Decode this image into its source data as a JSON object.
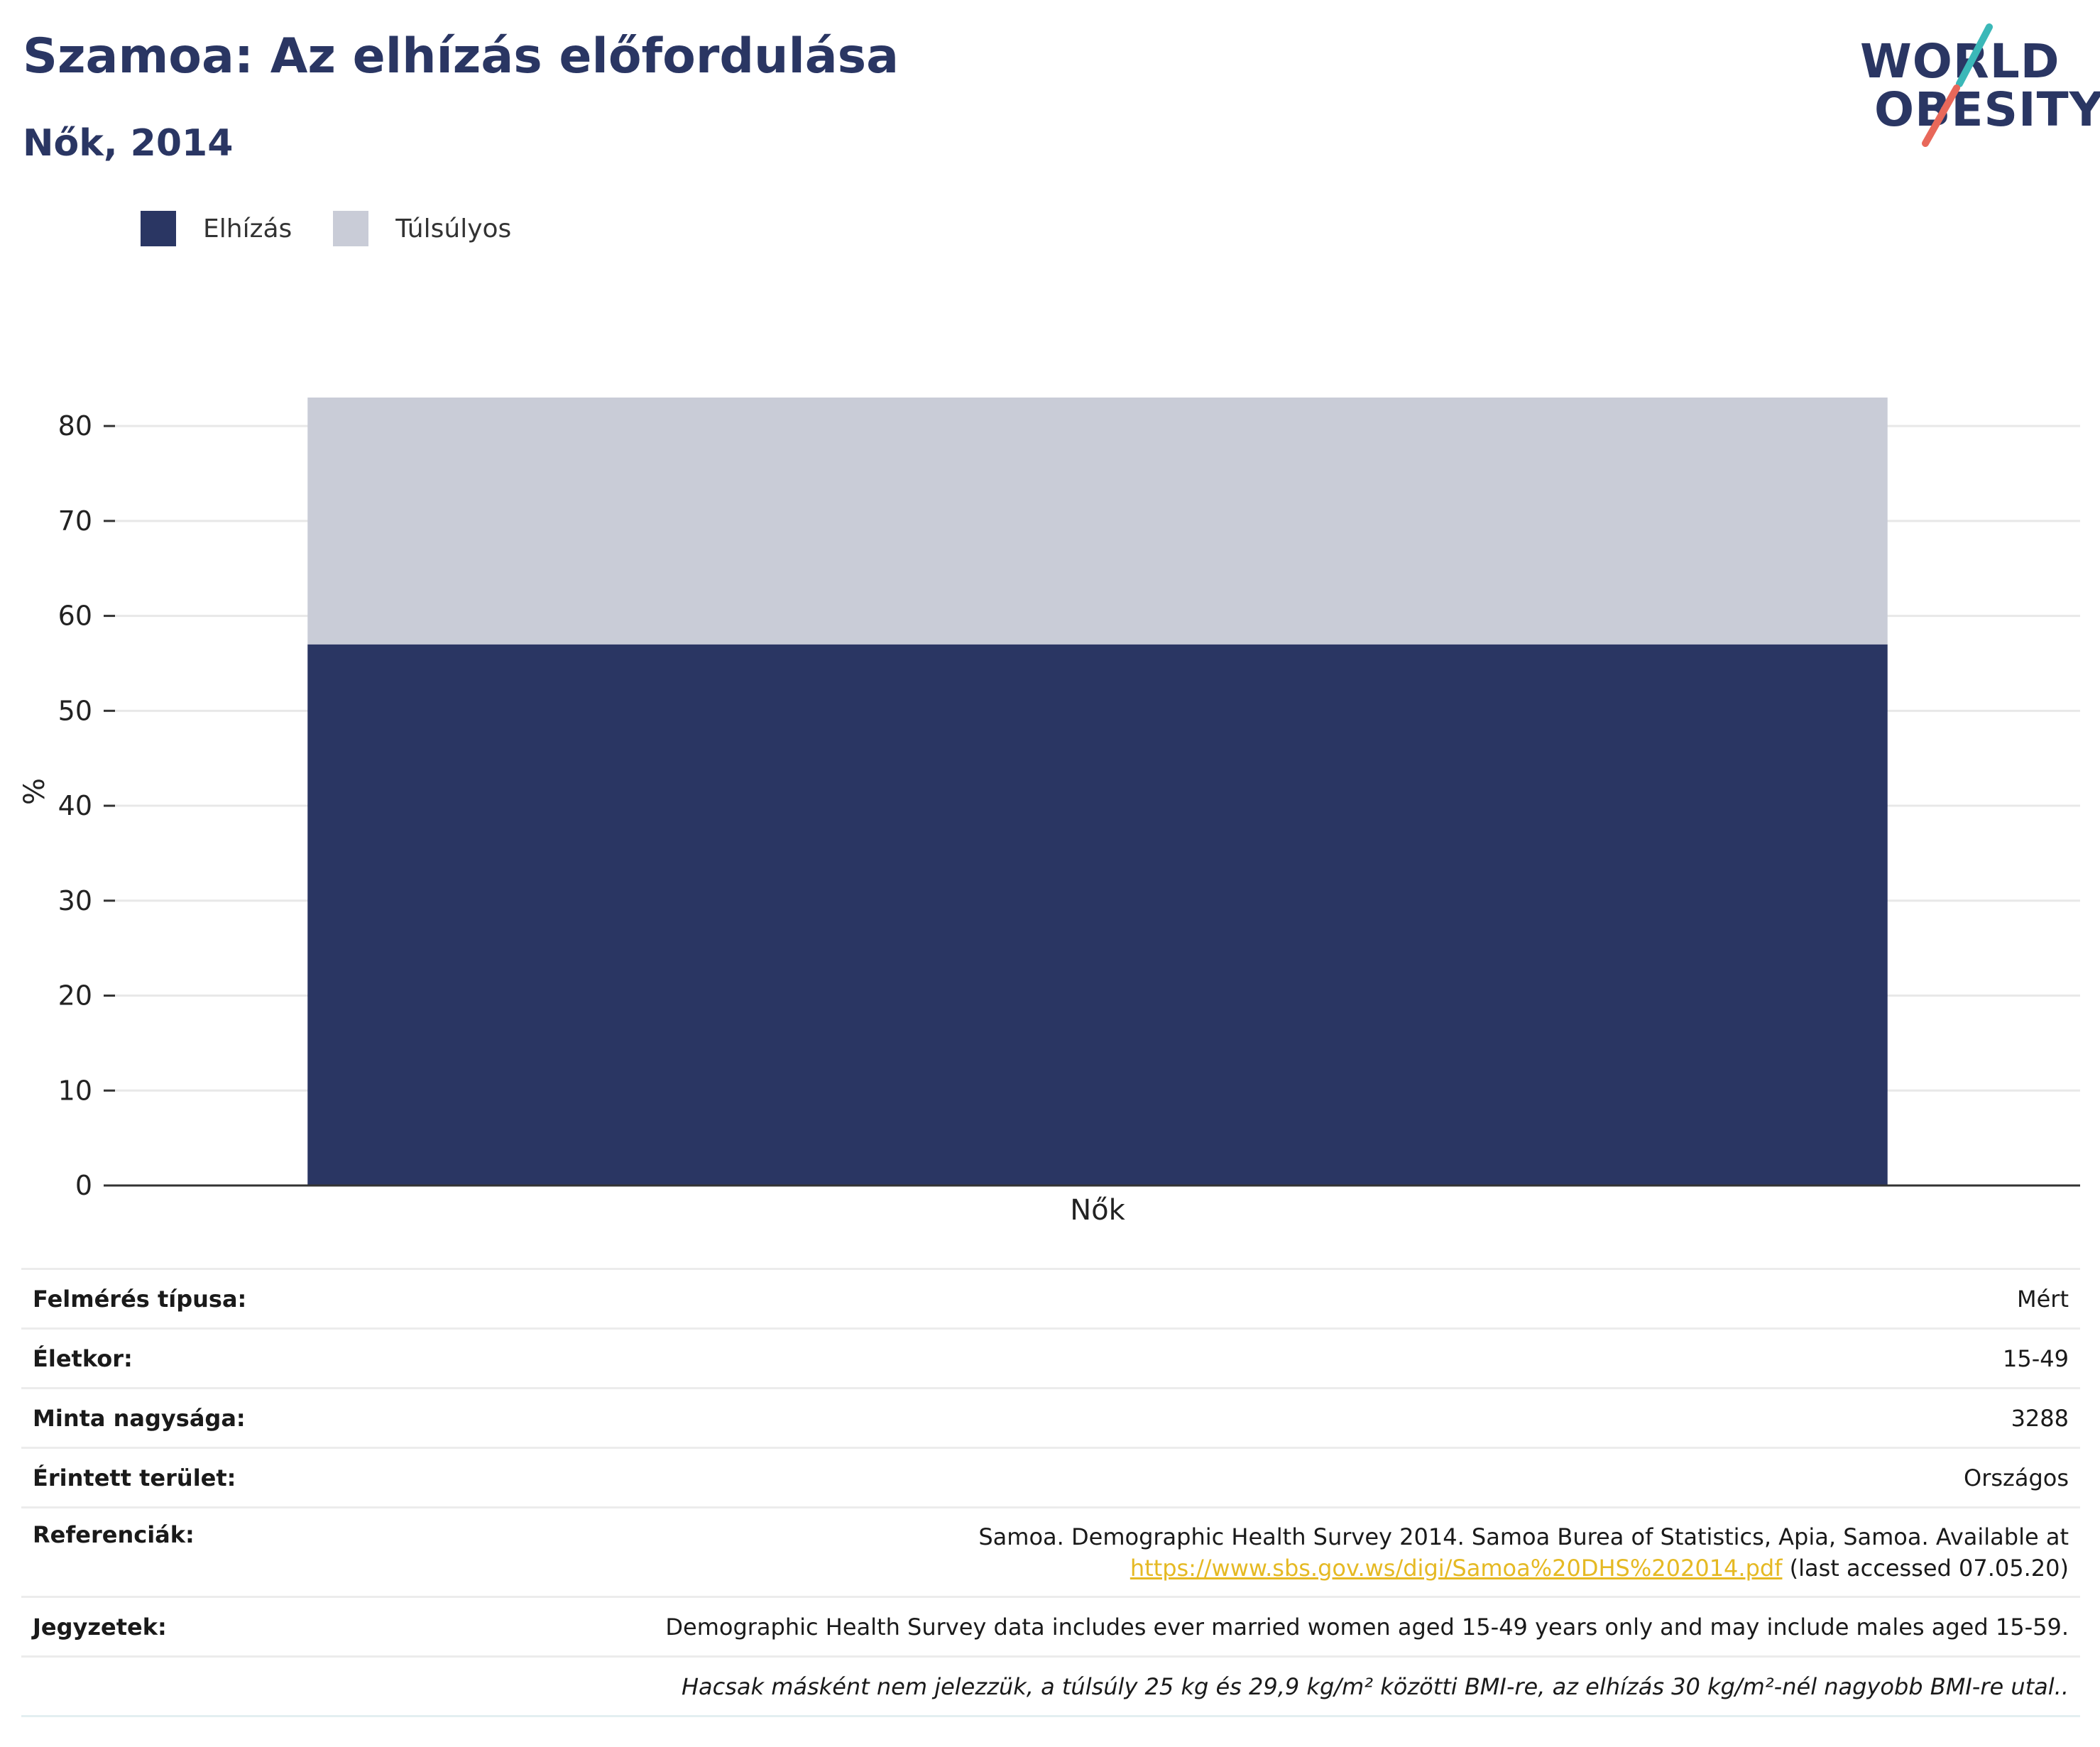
{
  "header": {
    "title": "Szamoa: Az elhízás előfordulása",
    "subtitle": "Nők, 2014"
  },
  "logo": {
    "line1": "WORLD",
    "line2": "OBESITY",
    "text_color": "#2a3663",
    "accent_teal": "#3bb8b8",
    "accent_red": "#e8685a"
  },
  "chart_data": {
    "type": "bar",
    "stacked": true,
    "categories": [
      "Nők"
    ],
    "series": [
      {
        "name": "Elhízás",
        "values": [
          57
        ],
        "color": "#2a3663"
      },
      {
        "name": "Túlsúlyos",
        "values": [
          26
        ],
        "color": "#c9ccd7"
      }
    ],
    "title": "",
    "xlabel": "",
    "ylabel": "%",
    "ylim": [
      0,
      83
    ],
    "yticks": [
      0,
      10,
      20,
      30,
      40,
      50,
      60,
      70,
      80
    ],
    "grid": true,
    "legend": "top-left"
  },
  "info": {
    "survey_type": {
      "label": "Felmérés típusa:",
      "value": "Mért"
    },
    "age": {
      "label": "Életkor:",
      "value": "15-49"
    },
    "sample_size": {
      "label": "Minta nagysága:",
      "value": "3288"
    },
    "area": {
      "label": "Érintett terület:",
      "value": "Országos"
    },
    "references": {
      "label": "Referenciák:",
      "text": "Samoa. Demographic Health Survey 2014. Samoa Burea of Statistics, Apia, Samoa. Available at",
      "link": "https://www.sbs.gov.ws/digi/Samoa%20DHS%202014.pdf",
      "suffix": "(last accessed 07.05.20)"
    },
    "notes": {
      "label": "Jegyzetek:",
      "value": "Demographic Health Survey data includes ever married women aged 15-49 years only and may include males aged 15-59.",
      "footnote": "Hacsak másként nem jelezzük, a túlsúly 25 kg és 29,9 kg/m² közötti BMI-re, az elhízás 30 kg/m²-nél nagyobb BMI-re utal.."
    }
  }
}
